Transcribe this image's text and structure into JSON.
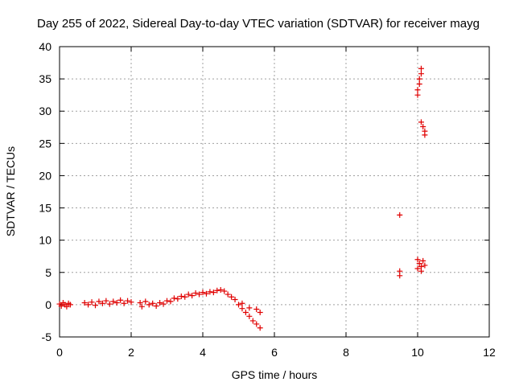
{
  "chart_data": {
    "type": "scatter",
    "title": "Day 255 of 2022, Sidereal Day-to-day VTEC variation (SDTVAR) for receiver mayg",
    "xlabel": "GPS time / hours",
    "ylabel": "SDTVAR / TECUs",
    "xlim": [
      0,
      12
    ],
    "ylim": [
      -5,
      40
    ],
    "xticks": [
      0,
      2,
      4,
      6,
      8,
      10,
      12
    ],
    "xtick_labels": [
      "0",
      "2",
      "4",
      "6",
      "8",
      "10",
      "12"
    ],
    "yticks": [
      -5,
      0,
      5,
      10,
      15,
      20,
      25,
      30,
      35,
      40
    ],
    "ytick_labels": [
      "-5",
      "0",
      "5",
      "10",
      "15",
      "20",
      "25",
      "30",
      "35",
      "40"
    ],
    "grid": true,
    "marker": "+",
    "color": "#e00000",
    "series": [
      {
        "name": "SDTVAR",
        "points": [
          [
            0.0,
            0.1
          ],
          [
            0.05,
            -0.2
          ],
          [
            0.1,
            0.3
          ],
          [
            0.15,
            0.0
          ],
          [
            0.2,
            -0.3
          ],
          [
            0.25,
            0.2
          ],
          [
            0.3,
            0.0
          ],
          [
            0.7,
            0.3
          ],
          [
            0.8,
            0.0
          ],
          [
            0.9,
            0.4
          ],
          [
            1.0,
            -0.1
          ],
          [
            1.1,
            0.5
          ],
          [
            1.2,
            0.2
          ],
          [
            1.3,
            0.6
          ],
          [
            1.4,
            0.1
          ],
          [
            1.5,
            0.5
          ],
          [
            1.6,
            0.3
          ],
          [
            1.7,
            0.7
          ],
          [
            1.8,
            0.2
          ],
          [
            1.9,
            0.6
          ],
          [
            2.0,
            0.4
          ],
          [
            2.25,
            0.3
          ],
          [
            2.3,
            -0.3
          ],
          [
            2.4,
            0.5
          ],
          [
            2.5,
            0.0
          ],
          [
            2.6,
            0.2
          ],
          [
            2.7,
            -0.2
          ],
          [
            2.8,
            0.3
          ],
          [
            2.9,
            0.1
          ],
          [
            3.0,
            0.6
          ],
          [
            3.1,
            0.5
          ],
          [
            3.2,
            1.0
          ],
          [
            3.3,
            0.9
          ],
          [
            3.4,
            1.3
          ],
          [
            3.5,
            1.2
          ],
          [
            3.6,
            1.6
          ],
          [
            3.7,
            1.4
          ],
          [
            3.8,
            1.8
          ],
          [
            3.9,
            1.6
          ],
          [
            4.0,
            1.9
          ],
          [
            4.1,
            1.7
          ],
          [
            4.2,
            2.0
          ],
          [
            4.3,
            1.9
          ],
          [
            4.4,
            2.2
          ],
          [
            4.5,
            2.3
          ],
          [
            4.6,
            2.1
          ],
          [
            4.7,
            1.6
          ],
          [
            4.8,
            1.2
          ],
          [
            4.9,
            0.8
          ],
          [
            5.0,
            0.0
          ],
          [
            5.1,
            -0.6
          ],
          [
            5.2,
            -1.2
          ],
          [
            5.3,
            -1.8
          ],
          [
            5.4,
            -2.5
          ],
          [
            5.5,
            -3.0
          ],
          [
            5.6,
            -3.6
          ],
          [
            5.1,
            0.2
          ],
          [
            5.3,
            -0.5
          ],
          [
            5.5,
            -0.7
          ],
          [
            5.6,
            -1.2
          ],
          [
            9.5,
            13.9
          ],
          [
            9.5,
            5.2
          ],
          [
            9.5,
            4.5
          ],
          [
            10.0,
            5.6
          ],
          [
            10.05,
            6.4
          ],
          [
            10.1,
            5.9
          ],
          [
            10.15,
            6.8
          ],
          [
            10.2,
            6.1
          ],
          [
            10.0,
            7.0
          ],
          [
            10.1,
            5.2
          ],
          [
            10.0,
            32.5
          ],
          [
            10.0,
            33.3
          ],
          [
            10.05,
            34.2
          ],
          [
            10.05,
            35.0
          ],
          [
            10.1,
            35.8
          ],
          [
            10.1,
            36.6
          ],
          [
            10.1,
            28.3
          ],
          [
            10.15,
            27.6
          ],
          [
            10.2,
            26.9
          ],
          [
            10.2,
            26.3
          ]
        ]
      }
    ]
  }
}
